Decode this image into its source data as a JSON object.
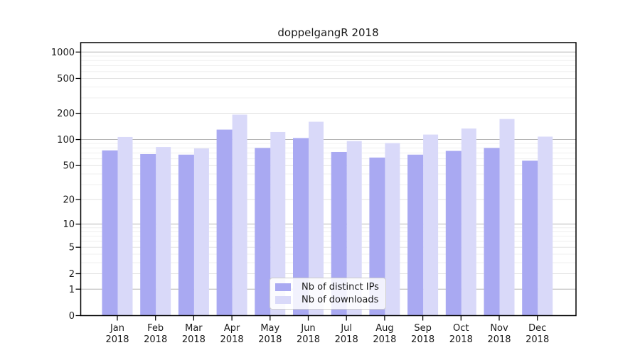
{
  "chart_data": {
    "type": "bar",
    "title": "doppelgangR 2018",
    "categories": [
      "Jan",
      "Feb",
      "Mar",
      "Apr",
      "May",
      "Jun",
      "Jul",
      "Aug",
      "Sep",
      "Oct",
      "Nov",
      "Dec"
    ],
    "year_label": "2018",
    "series": [
      {
        "name": "Nb of distinct IPs",
        "color": "#a9a9f2",
        "values": [
          75,
          68,
          67,
          130,
          80,
          104,
          72,
          62,
          67,
          74,
          80,
          57
        ]
      },
      {
        "name": "Nb of downloads",
        "color": "#d9d9f9",
        "values": [
          107,
          82,
          79,
          193,
          122,
          160,
          96,
          91,
          114,
          134,
          172,
          108
        ]
      }
    ],
    "y_axis": {
      "scale": "log1p",
      "tick_labels": [
        0,
        1,
        2,
        5,
        10,
        20,
        50,
        100,
        200,
        500,
        1000
      ],
      "power_ticks": [
        1,
        10,
        100,
        1000
      ],
      "sub_ticks": [
        2,
        5,
        20,
        50,
        200,
        500
      ],
      "minor_gridlines": [
        3,
        4,
        6,
        7,
        8,
        9,
        30,
        40,
        60,
        70,
        80,
        90,
        300,
        400,
        600,
        700,
        800,
        900
      ],
      "ylim_top": 1000
    },
    "legend_position": "lower center",
    "grid": true
  },
  "colors": {
    "bar_dark": "#a9a9f2",
    "bar_light": "#d9d9f9",
    "grid_major": "#b4b4b4",
    "grid_sub": "#e2e2e2",
    "grid_minor": "#efefef",
    "axis": "#000000",
    "text": "#1a1a1a",
    "background": "#ffffff"
  }
}
